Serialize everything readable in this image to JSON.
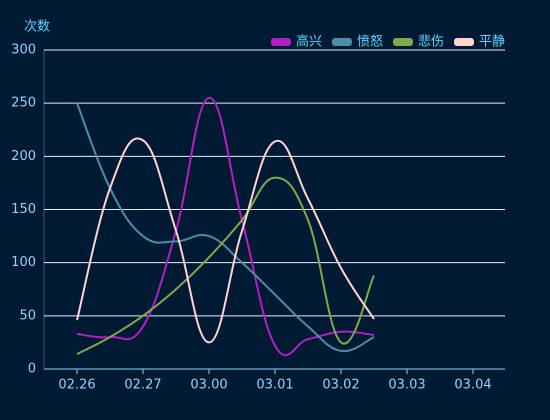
{
  "chart_data": {
    "type": "line",
    "y_axis_label": "次数",
    "categories": [
      "02.26",
      null,
      "02.27",
      null,
      "03.00",
      null,
      "03.01",
      null,
      "03.02",
      null,
      "03.03",
      null,
      "03.04"
    ],
    "series": [
      {
        "name": "高兴",
        "color": "#b21fc2",
        "values": [
          33,
          30,
          40,
          130,
          255,
          140,
          22,
          28,
          35,
          32,
          null,
          null,
          null
        ]
      },
      {
        "name": "愤怒",
        "color": "#4a8fa6",
        "values": [
          250,
          170,
          125,
          120,
          125,
          100,
          70,
          40,
          17,
          30,
          null,
          null,
          null
        ]
      },
      {
        "name": "悲伤",
        "color": "#80a84c",
        "values": [
          14,
          30,
          50,
          75,
          105,
          140,
          180,
          140,
          25,
          88,
          null,
          null,
          null
        ]
      },
      {
        "name": "平静",
        "color": "#ffd3d3",
        "values": [
          46,
          170,
          215,
          130,
          25,
          130,
          214,
          160,
          95,
          47,
          null,
          null,
          null
        ]
      }
    ],
    "ylim": [
      0,
      300
    ],
    "yticks": [
      0,
      50,
      100,
      150,
      200,
      250,
      300
    ],
    "grid": true,
    "legend": "top-right"
  }
}
